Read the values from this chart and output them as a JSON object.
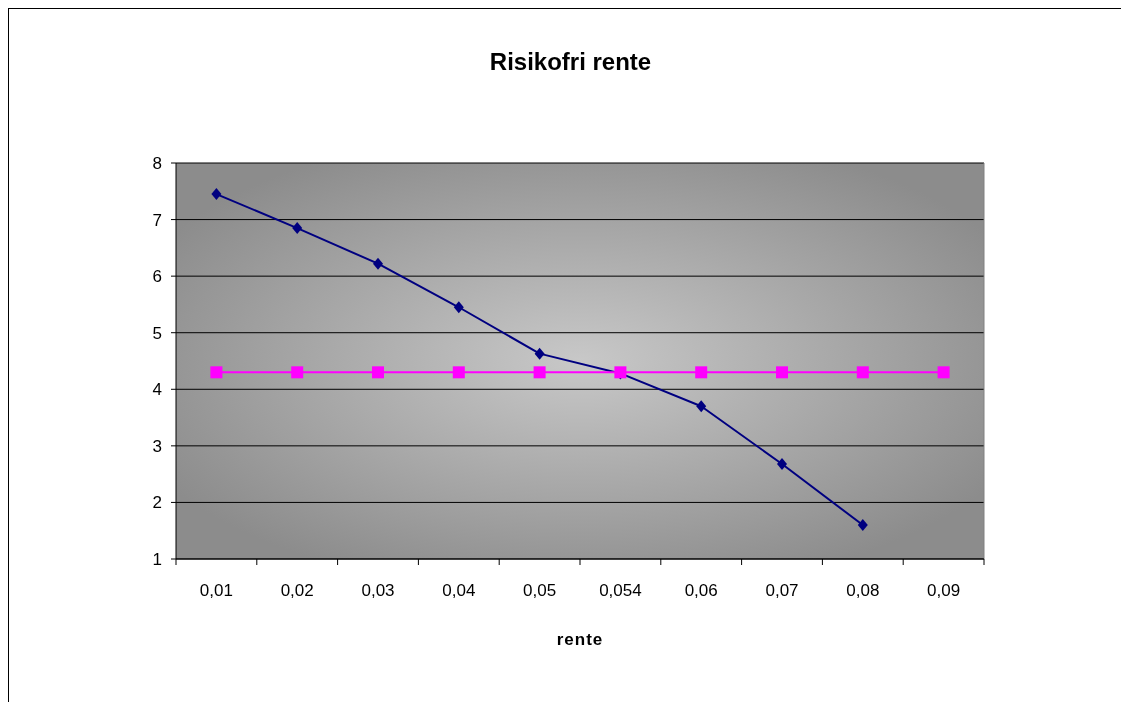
{
  "chart_data": {
    "type": "line",
    "title": "Risikofri rente",
    "xlabel": "rente",
    "categories": [
      "0,01",
      "0,02",
      "0,03",
      "0,04",
      "0,05",
      "0,054",
      "0,06",
      "0,07",
      "0,08",
      "0,09"
    ],
    "series": [
      {
        "color": "#000080",
        "marker": "diamond",
        "values": [
          7.45,
          6.85,
          6.22,
          5.45,
          4.63,
          4.28,
          3.7,
          2.68,
          1.6,
          null
        ]
      },
      {
        "color": "#ff00ff",
        "marker": "square",
        "values": [
          4.3,
          4.3,
          4.3,
          4.3,
          4.3,
          4.3,
          4.3,
          4.3,
          4.3,
          4.3
        ]
      }
    ],
    "ylim": [
      1,
      8
    ],
    "yticks": [
      1,
      2,
      3,
      4,
      5,
      6,
      7,
      8
    ],
    "grid": "y"
  }
}
